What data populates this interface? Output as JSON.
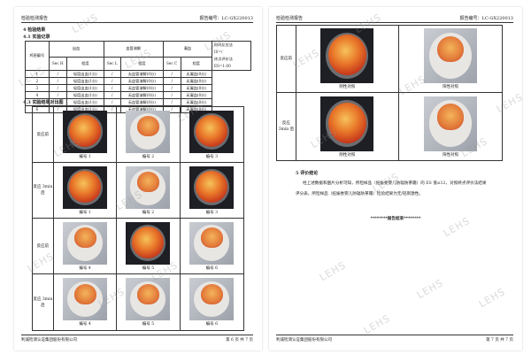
{
  "watermark": "LEHS",
  "page1": {
    "header_left": "检验检测报告",
    "header_right": "报告编号：LC-GX220013",
    "sec4": "4 检验结果",
    "sec41": "4.1 实验记录",
    "table": {
      "h_id": "鸡胚编号",
      "h_bleed": "出血",
      "h_lysis": "血管溶解",
      "h_coag": "凝血",
      "h_sech": "Sec H",
      "h_secl": "Sec L",
      "h_secc": "Sec C",
      "h_deg": "程度",
      "rows": [
        [
          "1",
          "/",
          "轻度出血(1分)",
          "/",
          "无血管溶解(0分)",
          "/",
          "无凝血(0分)"
        ],
        [
          "2",
          "/",
          "轻度出血(1分)",
          "/",
          "无血管溶解(0分)",
          "/",
          "无凝血(0分)"
        ],
        [
          "3",
          "/",
          "轻度出血(1分)",
          "/",
          "无血管溶解(0分)",
          "/",
          "无凝血(0分)"
        ],
        [
          "4",
          "/",
          "轻度出血(1分)",
          "/",
          "无血管溶解(0分)",
          "/",
          "无凝血(0分)"
        ],
        [
          "5",
          "/",
          "轻度出血(1分)",
          "/",
          "无血管溶解(0分)",
          "/",
          "无凝血(0分)"
        ],
        [
          "6",
          "/",
          "轻度出血(1分)",
          "/",
          "无血管溶解(0分)",
          "/",
          "无凝血(0分)"
        ]
      ],
      "note1": "时间反应法",
      "note2": "IS=/",
      "note3": "终点评价法",
      "note4": "ES=1.00"
    },
    "sec43": "4.3 实验结果对比图",
    "rows": [
      {
        "label": "反应前",
        "items": [
          "编号 1",
          "编号 2",
          "编号 3"
        ]
      },
      {
        "label": "反应 3min 后",
        "items": [
          "编号 1",
          "编号 2",
          "编号 3"
        ]
      },
      {
        "label": "反应前",
        "items": [
          "编号 4",
          "编号 5",
          "编号 6"
        ]
      },
      {
        "label": "反应 3min 后",
        "items": [
          "编号 4",
          "编号 5",
          "编号 6"
        ]
      }
    ],
    "footer_left": "利诚检测认证集团股份有限公司",
    "footer_right": "第 6 页 共 7 页"
  },
  "page2": {
    "header_left": "检验检测报告",
    "header_right": "报告编号：LC-GX220013",
    "rows": [
      {
        "label": "反应前",
        "items": [
          "阴性对照",
          "阳性对照"
        ]
      },
      {
        "label": "反应 3min 后",
        "items": [
          "阴性对照",
          "阳性对照"
        ]
      }
    ],
    "sec5": "5 评价结论",
    "conclusion1": "经上述数据和图片分析可知，所检样品（妊娠娄婴儿防辐防茶霜）的 ES 值≤12，对照终点评价法结果",
    "conclusion2": "评分表，所检样品（妊娠娄婴儿防辐防茶霜）检验结果为无/轻刺激性。",
    "end": "********报告结束********",
    "footer_left": "利诚检测认证集团股份有限公司",
    "footer_right": "第 7 页 共 7 页"
  }
}
